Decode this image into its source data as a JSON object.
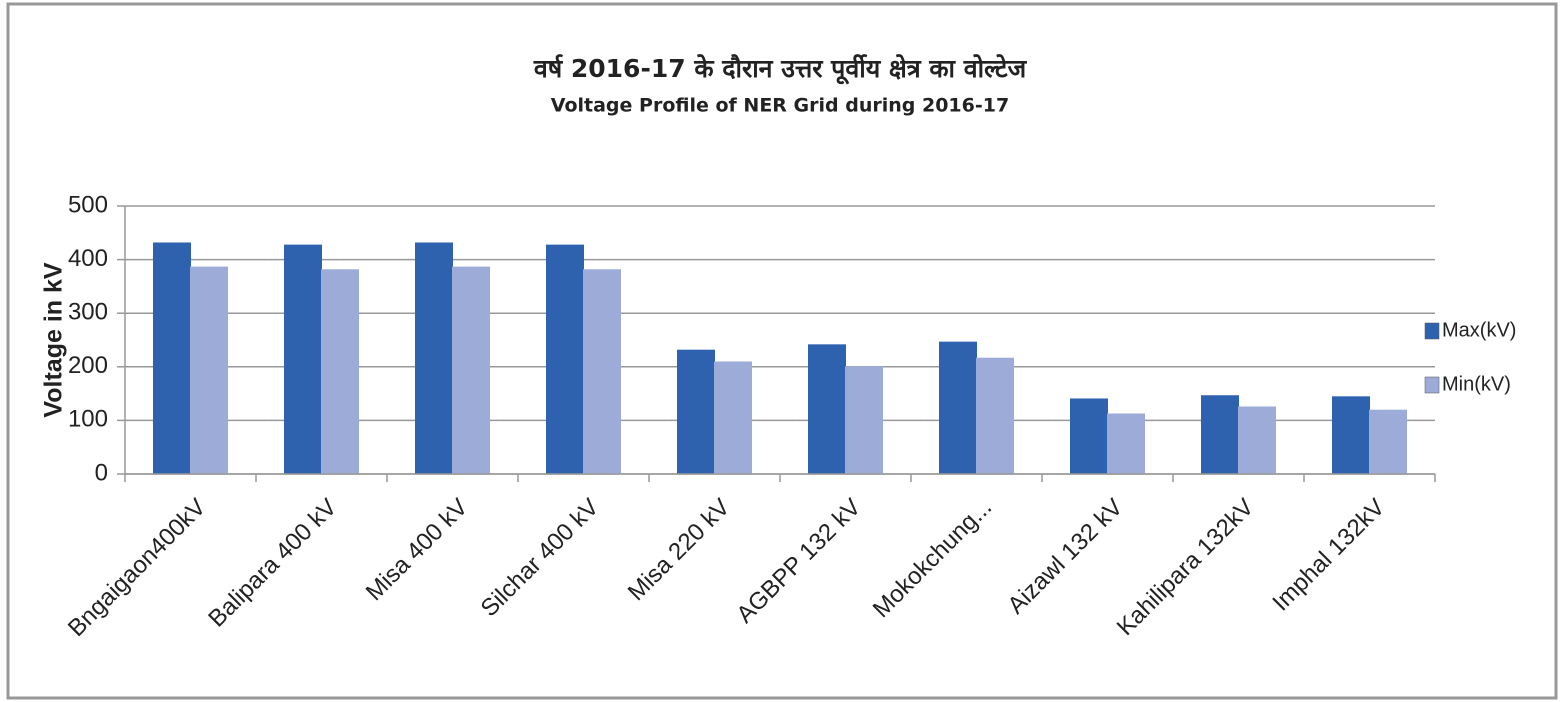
{
  "chart_data": {
    "type": "bar",
    "title": "वर्ष 2016-17 के दौरान उत्तर पूर्वीय क्षेत्र का वोल्टेज",
    "subtitle": "Voltage Profile of NER Grid during 2016-17",
    "y_label": "Voltage in kV",
    "categories": [
      "Bngaigaon400kV",
      "Balipara 400 kV",
      "Misa 400 kV",
      "Silchar 400 kV",
      "Misa 220 kV",
      "AGBPP 132 kV",
      "Mokokchung...",
      "Aizawl 132 kV",
      "Kahilipara 132kV",
      "Imphal 132kV"
    ],
    "series": [
      {
        "name": "Max(kV)",
        "color": "#2f62ae",
        "values": [
          431,
          427,
          431,
          427,
          231,
          241,
          246,
          140,
          146,
          144
        ]
      },
      {
        "name": "Min(kV)",
        "color": "#9dabd8",
        "values": [
          386,
          381,
          386,
          381,
          209,
          200,
          216,
          112,
          125,
          119
        ]
      }
    ],
    "ylim": [
      0,
      500
    ],
    "yticks": [
      0,
      100,
      200,
      300,
      400,
      500
    ],
    "grid": true,
    "legend": "right"
  }
}
